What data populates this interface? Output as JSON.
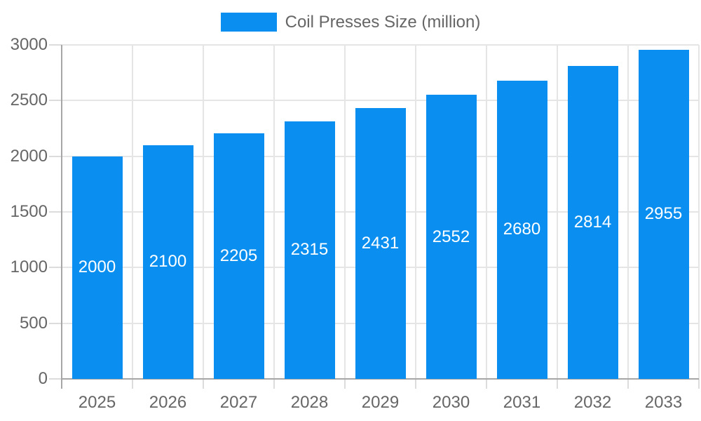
{
  "legend": {
    "label": "Coil Presses Size (million)"
  },
  "colors": {
    "bar": "#0A8FF0",
    "bar_value_text": "#ffffff",
    "axis_text": "#666666",
    "grid": "#e5e5e5",
    "axis_line": "#a6a6a6",
    "tick": "#dcdcdc",
    "background": "#ffffff"
  },
  "chart_data": {
    "type": "bar",
    "title": "Coil Presses Size (million)",
    "series": [
      {
        "name": "Coil Presses Size (million)",
        "values": [
          2000,
          2100,
          2205,
          2315,
          2431,
          2552,
          2680,
          2814,
          2955
        ]
      }
    ],
    "categories": [
      "2025",
      "2026",
      "2027",
      "2028",
      "2029",
      "2030",
      "2031",
      "2032",
      "2033"
    ],
    "bar_labels": [
      2000,
      2100,
      2205,
      2315,
      2431,
      2552,
      2680,
      2814,
      2955
    ],
    "xlabel": "",
    "ylabel": "",
    "ylim": [
      0,
      3000
    ],
    "yticks": [
      0,
      500,
      1000,
      1500,
      2000,
      2500,
      3000
    ],
    "grid": true,
    "legend_position": "top"
  }
}
